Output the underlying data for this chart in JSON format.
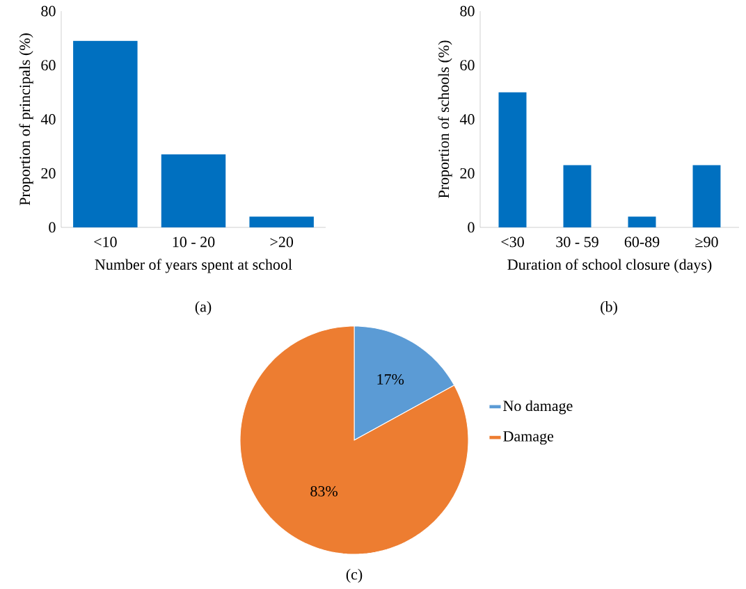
{
  "chart_data": [
    {
      "type": "bar",
      "categories": [
        "<10",
        "10 - 20",
        ">20"
      ],
      "values": [
        69,
        27,
        4
      ],
      "color": "#0070c0",
      "xlabel": "Number of years spent at school",
      "ylabel": "Proportion of principals (%)",
      "ylim": [
        0,
        80
      ],
      "yticks": [
        0,
        20,
        40,
        60,
        80
      ],
      "annotations": [
        "(a)"
      ]
    },
    {
      "type": "bar",
      "categories": [
        "<30",
        "30 - 59",
        "60-89",
        "≥90"
      ],
      "values": [
        50,
        23,
        4,
        23
      ],
      "color": "#0070c0",
      "xlabel": "Duration of school closure (days)",
      "ylabel": "Proportion of schools (%)",
      "ylim": [
        0,
        80
      ],
      "yticks": [
        0,
        20,
        40,
        60,
        80
      ],
      "annotations": [
        "(b)"
      ]
    },
    {
      "type": "pie",
      "categories": [
        "No damage",
        "Damage"
      ],
      "values": [
        17,
        83
      ],
      "colors": [
        "#5b9bd5",
        "#ed7d31"
      ],
      "value_labels": [
        "17%",
        "83%"
      ],
      "legend": "right",
      "annotations": [
        "(c)"
      ]
    }
  ]
}
